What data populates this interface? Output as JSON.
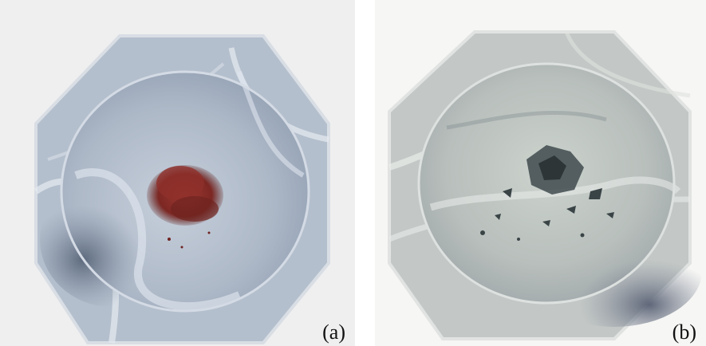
{
  "panels": [
    {
      "label": "(a)",
      "powder_color": "#8a2f2c",
      "bowl_tone": "#aeb8c6"
    },
    {
      "label": "(b)",
      "powder_color": "#3a4446",
      "bowl_tone": "#c7ccc9"
    }
  ]
}
